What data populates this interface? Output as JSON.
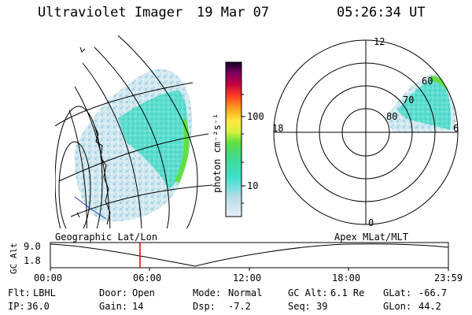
{
  "header": {
    "instrument": "Ultraviolet Imager",
    "date": "19 Mar 07",
    "time": "05:26:34 UT"
  },
  "colorbar": {
    "unit_label": "photon cm⁻²s⁻¹",
    "ticks": [
      "100",
      "10"
    ]
  },
  "polar_plot": {
    "labels": {
      "top": "12",
      "bottom": "0",
      "left": "18",
      "right": "6",
      "ring60": "60",
      "ring70": "70",
      "ring80": "80"
    }
  },
  "left_map_label": "Geographic Lat/Lon",
  "right_map_label": "Apex MLat/MLT",
  "orbit": {
    "ylabel": "GC Alt",
    "yticks": [
      "9.0",
      "1.8"
    ],
    "xticks": [
      "00:00",
      "06:00",
      "12:00",
      "18:00",
      "23:59"
    ],
    "current_time_fraction": 0.227
  },
  "info": {
    "row1": [
      {
        "label": "Flt:",
        "value": "LBHL"
      },
      {
        "label": "Door:",
        "value": "Open"
      },
      {
        "label": "Mode:",
        "value": "Normal"
      },
      {
        "label": "GC Alt:",
        "value": "6.1 Re"
      },
      {
        "label": "GLat:",
        "value": "-66.7"
      }
    ],
    "row2": [
      {
        "label": "IP:",
        "value": "36.0"
      },
      {
        "label": "Gain:",
        "value": "14"
      },
      {
        "label": "Dsp:",
        "value": "-7.2"
      },
      {
        "label": "Seq:",
        "value": "39"
      },
      {
        "label": "GLon:",
        "value": "44.2"
      }
    ]
  },
  "colors": {
    "aurora_cyan": "#40e0c8",
    "aurora_pale": "#c8e6f0",
    "aurora_green": "#60e040",
    "marker": "#e00000",
    "coast_blue": "#2040c0"
  }
}
